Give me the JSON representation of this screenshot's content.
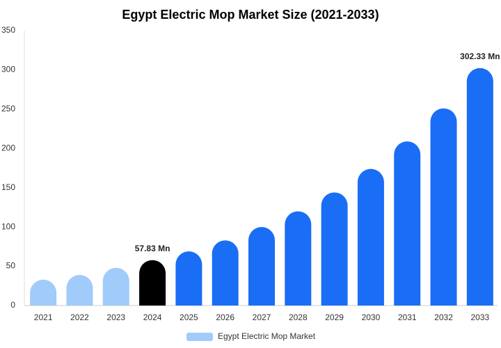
{
  "chart_data": {
    "type": "bar",
    "title": "Egypt Electric Mop Market Size (2021-2033)",
    "categories": [
      "2021",
      "2022",
      "2023",
      "2024",
      "2025",
      "2026",
      "2027",
      "2028",
      "2029",
      "2030",
      "2031",
      "2032",
      "2033"
    ],
    "series": [
      {
        "name": "Egypt Electric Mop Market",
        "color": "#a0cbfb",
        "colors": [
          "#a0cbfb",
          "#a0cbfb",
          "#a0cbfb",
          "#000000",
          "#1a6ef5",
          "#1a6ef5",
          "#1a6ef5",
          "#1a6ef5",
          "#1a6ef5",
          "#1a6ef5",
          "#1a6ef5",
          "#1a6ef5",
          "#1a6ef5"
        ],
        "values": [
          33,
          39,
          48,
          57.83,
          69,
          83,
          100,
          120,
          144,
          174,
          209,
          251,
          302.33
        ],
        "value_labels": [
          null,
          null,
          null,
          "57.83 Mn",
          null,
          null,
          null,
          null,
          null,
          null,
          null,
          null,
          "302.33 Mn"
        ]
      }
    ],
    "ylim": [
      0,
      350
    ],
    "yticks": [
      0,
      50,
      100,
      150,
      200,
      250,
      300,
      350
    ],
    "grid": false,
    "legend": "bottom"
  }
}
